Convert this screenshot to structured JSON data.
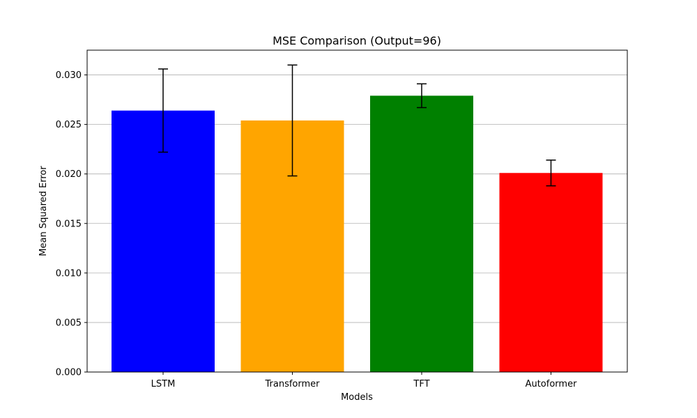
{
  "chart_data": {
    "type": "bar",
    "title": "MSE Comparison (Output=96)",
    "xlabel": "Models",
    "ylabel": "Mean Squared Error",
    "categories": [
      "LSTM",
      "Transformer",
      "TFT",
      "Autoformer"
    ],
    "values": [
      0.0264,
      0.0254,
      0.0279,
      0.0201
    ],
    "errors": [
      0.0042,
      0.0056,
      0.0012,
      0.0013
    ],
    "colors": [
      "#0000ff",
      "#ffa500",
      "#008000",
      "#ff0000"
    ],
    "ylim": [
      0,
      0.0325
    ],
    "yticks": [
      "0.000",
      "0.005",
      "0.010",
      "0.015",
      "0.020",
      "0.025",
      "0.030"
    ],
    "ytick_values": [
      0,
      0.005,
      0.01,
      0.015,
      0.02,
      0.025,
      0.03
    ],
    "grid": "y",
    "legend": "none"
  }
}
